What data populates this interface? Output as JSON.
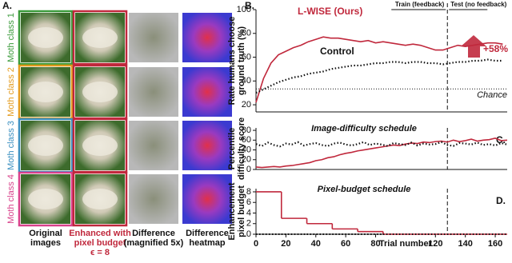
{
  "panel_a": {
    "label": "A.",
    "rows": [
      "Moth class 1",
      "Moth class 2",
      "Moth class 3",
      "Moth class 4"
    ],
    "row_colors": [
      "#3a9a3a",
      "#e39a1c",
      "#3a8fc0",
      "#d8408a"
    ],
    "columns": [
      [
        "Original",
        "images"
      ],
      [
        "Enhanced with",
        "pixel budget",
        "ϵ = 8"
      ],
      [
        "Difference",
        "(magnified 5x)"
      ],
      [
        "Difference",
        "heatmap"
      ]
    ]
  },
  "chart_data": [
    {
      "type": "line",
      "panel_label": "B.",
      "ylabel": [
        "Rate humans choose",
        "ground truth (%)"
      ],
      "x": [
        0,
        5,
        10,
        15,
        20,
        25,
        30,
        35,
        40,
        45,
        50,
        55,
        60,
        65,
        70,
        75,
        80,
        85,
        90,
        95,
        100,
        105,
        110,
        115,
        120,
        125,
        130,
        135,
        140,
        145,
        150,
        155,
        160,
        165
      ],
      "series": [
        {
          "name": "L-WISE (Ours)",
          "color": "#c0283c",
          "values": [
            22,
            42,
            55,
            62,
            65,
            68,
            70,
            73,
            75,
            77,
            76,
            76,
            75,
            74,
            73,
            74,
            72,
            73,
            72,
            71,
            70,
            71,
            70,
            68,
            66,
            66,
            68,
            70,
            69,
            70,
            71,
            72,
            72,
            71
          ]
        },
        {
          "name": "Control",
          "color": "#111111",
          "dashed": true,
          "values": [
            30,
            33,
            36,
            39,
            41,
            43,
            44,
            46,
            47,
            48,
            50,
            51,
            52,
            53,
            53,
            54,
            55,
            55,
            56,
            56,
            55,
            56,
            56,
            55,
            55,
            54,
            55,
            56,
            56,
            57,
            57,
            58,
            57,
            57
          ]
        }
      ],
      "xlim": [
        0,
        168
      ],
      "ylim": [
        14,
        100
      ],
      "yticks": [
        20,
        40,
        60,
        80,
        100
      ],
      "chance": 33.3,
      "chance_label": "Chance",
      "phase_boundary": 128,
      "phases": [
        "Train (feedback)",
        "Test (no feedback)"
      ],
      "annotation": "+58%"
    },
    {
      "type": "line",
      "panel_label": "C.",
      "title": "Image-difficulty schedule",
      "ylabel": [
        "Percentile",
        "difficulty score"
      ],
      "x": [
        0,
        4,
        8,
        12,
        16,
        20,
        24,
        28,
        32,
        36,
        40,
        44,
        48,
        52,
        56,
        60,
        64,
        68,
        72,
        76,
        80,
        84,
        88,
        92,
        96,
        100,
        104,
        108,
        112,
        116,
        120,
        124,
        128,
        132,
        136,
        140,
        144,
        148,
        152,
        156,
        160,
        164,
        168
      ],
      "series": [
        {
          "color": "#c0283c",
          "values": [
            5,
            4,
            5,
            6,
            5,
            7,
            8,
            10,
            12,
            14,
            18,
            20,
            24,
            26,
            30,
            33,
            35,
            38,
            40,
            42,
            44,
            46,
            48,
            50,
            49,
            52,
            54,
            53,
            56,
            55,
            57,
            58,
            56,
            60,
            57,
            59,
            62,
            58,
            60,
            61,
            64,
            59,
            60
          ]
        },
        {
          "color": "#111111",
          "dashed": true,
          "values": [
            52,
            48,
            55,
            50,
            47,
            53,
            51,
            56,
            49,
            52,
            54,
            50,
            48,
            53,
            55,
            51,
            49,
            52,
            56,
            50,
            53,
            51,
            48,
            54,
            52,
            50,
            55,
            49,
            53,
            51,
            52,
            56,
            50,
            48,
            54,
            53,
            51,
            55,
            50,
            52,
            49,
            54,
            51
          ]
        }
      ],
      "xlim": [
        0,
        168
      ],
      "ylim": [
        0,
        85
      ],
      "yticks": [
        0,
        20,
        40,
        60,
        80
      ],
      "phase_boundary": 128
    },
    {
      "type": "step",
      "panel_label": "D.",
      "title": "Pixel-budget schedule",
      "ylabel": [
        "Enhancement",
        "pixel budget"
      ],
      "x": [
        0,
        17,
        34,
        51,
        68,
        85,
        168
      ],
      "series": [
        {
          "color": "#c0283c",
          "values": [
            8,
            3,
            2,
            1,
            0.5,
            0,
            0
          ]
        },
        {
          "color": "#111111",
          "dashed": true,
          "values": [
            0,
            0,
            0,
            0,
            0,
            0,
            0
          ]
        }
      ],
      "xlim": [
        0,
        168
      ],
      "ylim": [
        0,
        8.6
      ],
      "yticks": [
        0,
        2,
        4,
        6,
        8
      ],
      "xticks": [
        0,
        20,
        40,
        60,
        80,
        120,
        140,
        160
      ],
      "xlabel": "Trial number",
      "phase_boundary": 128
    }
  ]
}
